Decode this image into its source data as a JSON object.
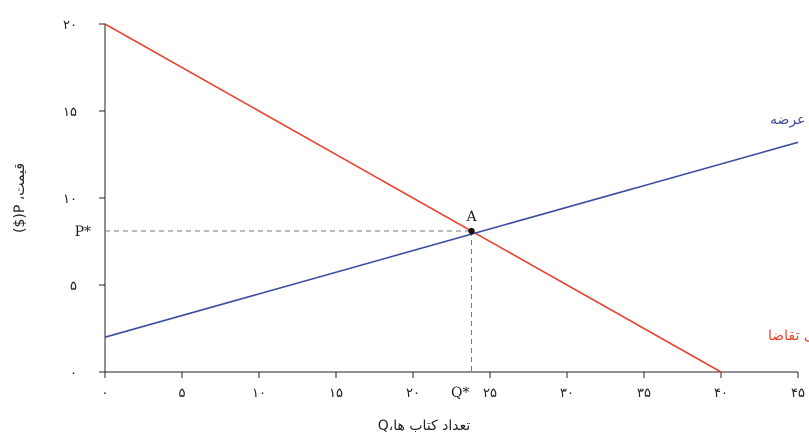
{
  "chart_data": {
    "type": "line",
    "xlabel": "تعداد کتاب ها،Q",
    "ylabel": "قیمت، P($)",
    "xlim": [
      0,
      45
    ],
    "ylim": [
      0,
      20
    ],
    "x_ticks": [
      0,
      5,
      10,
      15,
      20,
      25,
      30,
      35,
      40,
      45
    ],
    "x_tick_labels": [
      "۰",
      "۵",
      "۱۰",
      "۱۵",
      "۲۰",
      "۲۵",
      "۳۰",
      "۳۵",
      "۴۰",
      "۴۵"
    ],
    "y_ticks": [
      0,
      5,
      10,
      15,
      20
    ],
    "y_tick_labels": [
      "۰",
      "۵",
      "۱۰",
      "۱۵",
      "۲۰"
    ],
    "grid": false,
    "series": [
      {
        "name": "منحنی تقاضا",
        "color": "#e8412c",
        "x": [
          0,
          40
        ],
        "y": [
          20,
          0
        ]
      },
      {
        "name": "منحنی عرضه",
        "color": "#3f4ea0",
        "x": [
          0,
          45
        ],
        "y": [
          2,
          13.2
        ]
      }
    ],
    "equilibrium": {
      "label": "A",
      "x": 23.8,
      "y": 8.1,
      "x_label": "Q*",
      "y_label": "P*"
    }
  }
}
